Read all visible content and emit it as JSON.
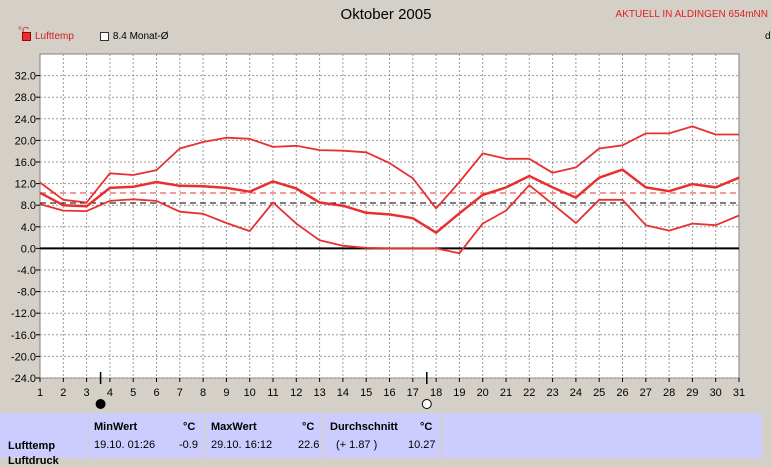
{
  "title": "Oktober 2005",
  "station": "AKTUELL IN ALDINGEN 654mNN",
  "unit": "°C",
  "legend": {
    "series1": "Lufttemp",
    "series2": "8.4 Monat-Ø"
  },
  "cutoff_label": "d",
  "colors": {
    "line": "#e83030",
    "avg": "#000000",
    "panel": "#ccccff",
    "plot_bg": "#ffffff"
  },
  "chart_data": {
    "type": "line",
    "title": "Oktober 2005",
    "ylabel": "°C",
    "ylim": [
      -24,
      36
    ],
    "yticks": [
      "32.0",
      "28.0",
      "24.0",
      "20.0",
      "16.0",
      "12.0",
      "8.0",
      "4.0",
      "0.0",
      "-4.0",
      "-8.0",
      "-12.0",
      "-16.0",
      "-20.0",
      "-24.0"
    ],
    "ytick_values": [
      32,
      28,
      24,
      20,
      16,
      12,
      8,
      4,
      0,
      -4,
      -8,
      -12,
      -16,
      -20,
      -24
    ],
    "x": [
      1,
      2,
      3,
      4,
      5,
      6,
      7,
      8,
      9,
      10,
      11,
      12,
      13,
      14,
      15,
      16,
      17,
      18,
      19,
      20,
      21,
      22,
      23,
      24,
      25,
      26,
      27,
      28,
      29,
      30,
      31
    ],
    "xticks": [
      "1",
      "2",
      "3",
      "4",
      "5",
      "6",
      "7",
      "8",
      "9",
      "10",
      "11",
      "12",
      "13",
      "14",
      "15",
      "16",
      "17",
      "18",
      "19",
      "20",
      "21",
      "22",
      "23",
      "24",
      "25",
      "26",
      "27",
      "28",
      "29",
      "30",
      "31"
    ],
    "grid": true,
    "series": [
      {
        "role": "max",
        "values": [
          12.2,
          9.0,
          8.5,
          13.9,
          13.6,
          14.5,
          18.5,
          19.7,
          20.5,
          20.3,
          18.8,
          19.0,
          18.2,
          18.1,
          17.8,
          15.8,
          13.0,
          7.4,
          12.3,
          17.6,
          16.6,
          16.6,
          14.0,
          15.0,
          18.5,
          19.1,
          21.3,
          21.3,
          22.6,
          21.1,
          21.1
        ]
      },
      {
        "role": "mean",
        "values": [
          10.3,
          8.0,
          7.8,
          11.2,
          11.4,
          12.3,
          11.6,
          11.5,
          11.2,
          10.5,
          12.4,
          11.1,
          8.5,
          7.9,
          6.6,
          6.3,
          5.6,
          2.9,
          6.5,
          9.9,
          11.3,
          13.4,
          11.3,
          9.4,
          13.1,
          14.6,
          11.3,
          10.6,
          11.9,
          11.3,
          13.1
        ]
      },
      {
        "role": "min",
        "values": [
          8.2,
          7.0,
          6.9,
          8.8,
          9.1,
          8.8,
          6.8,
          6.4,
          4.7,
          3.2,
          8.5,
          4.6,
          1.5,
          0.5,
          0.1,
          0.0,
          0.0,
          0.0,
          -0.9,
          4.6,
          7.0,
          11.7,
          8.2,
          4.7,
          9.0,
          9.0,
          4.3,
          3.3,
          4.6,
          4.3,
          6.1
        ]
      }
    ],
    "reference_lines": [
      {
        "label": "8.4 Monat-Ø",
        "value": 8.4,
        "style": "dashed",
        "color": "#000000"
      },
      {
        "value": 10.27,
        "style": "dashed",
        "color": "#e83030"
      },
      {
        "value": 0,
        "style": "solid-bold",
        "color": "#000000"
      }
    ],
    "moon_markers": [
      {
        "day": 3.6,
        "phase": "new"
      },
      {
        "day": 17.6,
        "phase": "full"
      }
    ]
  },
  "stats": {
    "row_label": "Lufttemp",
    "row_label2": "Luftdruck",
    "min": {
      "header": "MinWert",
      "unit": "°C",
      "date": "19.10.  01:26",
      "value": "-0.9"
    },
    "max": {
      "header": "MaxWert",
      "unit": "°C",
      "date": "29.10.  16:12",
      "value": "22.6"
    },
    "avg": {
      "header": "Durchschnitt",
      "unit": "°C",
      "delta": "(+ 1.87 )",
      "value": "10.27"
    }
  }
}
